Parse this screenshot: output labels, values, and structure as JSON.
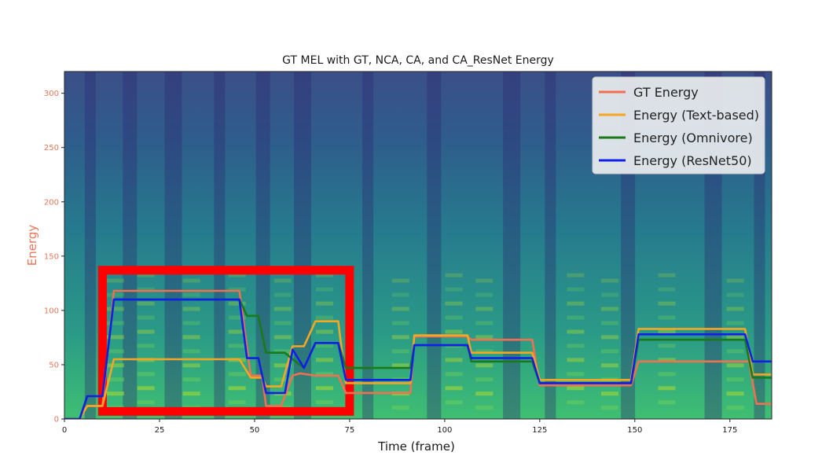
{
  "chart_data": {
    "type": "line",
    "title": "GT MEL with GT, NCA, CA, and CA_ResNet Energy",
    "xlabel": "Time (frame)",
    "ylabel": "Energy",
    "xlim": [
      0,
      186
    ],
    "ylim": [
      0,
      320
    ],
    "xticks": [
      0,
      25,
      50,
      75,
      100,
      125,
      150,
      175
    ],
    "yticks": [
      0,
      50,
      100,
      150,
      200,
      250,
      300
    ],
    "grid": false,
    "legend_position": "top-right",
    "background": "mel spectrogram (viridis)",
    "highlight_box": {
      "x": [
        10,
        75
      ],
      "y": [
        7,
        137
      ],
      "color": "#ff0000"
    },
    "series": [
      {
        "name": "GT Energy",
        "color": "#f07050",
        "points": [
          [
            0,
            0
          ],
          [
            4,
            0
          ],
          [
            6,
            12
          ],
          [
            10,
            12
          ],
          [
            13,
            118
          ],
          [
            46,
            118
          ],
          [
            49,
            40
          ],
          [
            52,
            40
          ],
          [
            53,
            12
          ],
          [
            57,
            12
          ],
          [
            60,
            40
          ],
          [
            62,
            42
          ],
          [
            66,
            40
          ],
          [
            72,
            40
          ],
          [
            74,
            24
          ],
          [
            91,
            24
          ],
          [
            92,
            76
          ],
          [
            106,
            76
          ],
          [
            107,
            73
          ],
          [
            123,
            73
          ],
          [
            125,
            31
          ],
          [
            149,
            31
          ],
          [
            151,
            53
          ],
          [
            180,
            53
          ],
          [
            182,
            14
          ],
          [
            186,
            14
          ]
        ]
      },
      {
        "name": "Energy (Text-based)",
        "color": "#f5a623",
        "points": [
          [
            0,
            0
          ],
          [
            4,
            0
          ],
          [
            6,
            12
          ],
          [
            10,
            12
          ],
          [
            13,
            55
          ],
          [
            46,
            55
          ],
          [
            49,
            38
          ],
          [
            52,
            38
          ],
          [
            53,
            30
          ],
          [
            57,
            30
          ],
          [
            60,
            67
          ],
          [
            63,
            67
          ],
          [
            66,
            90
          ],
          [
            70,
            90
          ],
          [
            72,
            90
          ],
          [
            74,
            33
          ],
          [
            91,
            33
          ],
          [
            92,
            77
          ],
          [
            106,
            77
          ],
          [
            107,
            61
          ],
          [
            123,
            61
          ],
          [
            125,
            36
          ],
          [
            149,
            36
          ],
          [
            151,
            83
          ],
          [
            179,
            83
          ],
          [
            181,
            41
          ],
          [
            186,
            41
          ]
        ]
      },
      {
        "name": "Energy (Omnivore)",
        "color": "#1a7a1a",
        "points": [
          [
            0,
            0
          ],
          [
            4,
            0
          ],
          [
            6,
            21
          ],
          [
            10,
            21
          ],
          [
            13,
            110
          ],
          [
            46,
            110
          ],
          [
            48,
            95
          ],
          [
            51,
            95
          ],
          [
            53,
            61
          ],
          [
            58,
            61
          ],
          [
            60,
            55
          ],
          [
            63,
            47
          ],
          [
            66,
            70
          ],
          [
            72,
            70
          ],
          [
            74,
            47
          ],
          [
            91,
            47
          ],
          [
            92,
            68
          ],
          [
            106,
            68
          ],
          [
            107,
            53
          ],
          [
            123,
            53
          ],
          [
            125,
            33
          ],
          [
            149,
            33
          ],
          [
            151,
            73
          ],
          [
            179,
            73
          ],
          [
            181,
            38
          ],
          [
            186,
            38
          ]
        ]
      },
      {
        "name": "Energy (ResNet50)",
        "color": "#1020e8",
        "points": [
          [
            0,
            0
          ],
          [
            4,
            0
          ],
          [
            6,
            21
          ],
          [
            10,
            21
          ],
          [
            13,
            110
          ],
          [
            46,
            110
          ],
          [
            48,
            56
          ],
          [
            51,
            56
          ],
          [
            53,
            24
          ],
          [
            58,
            24
          ],
          [
            60,
            64
          ],
          [
            63,
            47
          ],
          [
            66,
            70
          ],
          [
            72,
            70
          ],
          [
            74,
            36
          ],
          [
            91,
            36
          ],
          [
            92,
            68
          ],
          [
            106,
            68
          ],
          [
            107,
            56
          ],
          [
            123,
            56
          ],
          [
            125,
            33
          ],
          [
            149,
            33
          ],
          [
            151,
            78
          ],
          [
            179,
            78
          ],
          [
            181,
            53
          ],
          [
            186,
            53
          ]
        ]
      }
    ]
  }
}
